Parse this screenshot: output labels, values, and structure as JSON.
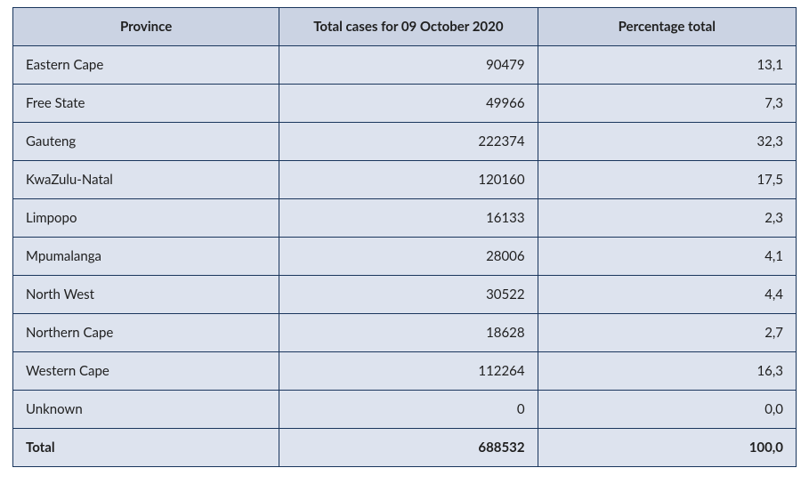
{
  "table": {
    "type": "table",
    "border_color": "#1a365d",
    "header_bg": "#cbd3e3",
    "body_bg": "#dde3ee",
    "text_color": "#1f1f1f",
    "font_family": "Lato, Segoe UI, Helvetica Neue, Arial, sans-serif",
    "header_fontsize": 15,
    "body_fontsize": 15,
    "column_widths_pct": [
      34,
      33,
      33
    ],
    "columns": [
      {
        "label": "Province",
        "align": "center"
      },
      {
        "label": "Total cases for 09 October 2020",
        "align": "center"
      },
      {
        "label": "Percentage total",
        "align": "center"
      }
    ],
    "rows": [
      {
        "province": "Eastern Cape",
        "cases": "90479",
        "pct": "13,1"
      },
      {
        "province": "Free State",
        "cases": "49966",
        "pct": "7,3"
      },
      {
        "province": "Gauteng",
        "cases": "222374",
        "pct": "32,3"
      },
      {
        "province": "KwaZulu-Natal",
        "cases": "120160",
        "pct": "17,5"
      },
      {
        "province": "Limpopo",
        "cases": "16133",
        "pct": "2,3"
      },
      {
        "province": "Mpumalanga",
        "cases": "28006",
        "pct": "4,1"
      },
      {
        "province": "North West",
        "cases": "30522",
        "pct": "4,4"
      },
      {
        "province": "Northern Cape",
        "cases": "18628",
        "pct": "2,7"
      },
      {
        "province": "Western Cape",
        "cases": "112264",
        "pct": "16,3"
      },
      {
        "province": "Unknown",
        "cases": "0",
        "pct": "0,0"
      }
    ],
    "total": {
      "province": "Total",
      "cases": "688532",
      "pct": "100,0"
    }
  }
}
